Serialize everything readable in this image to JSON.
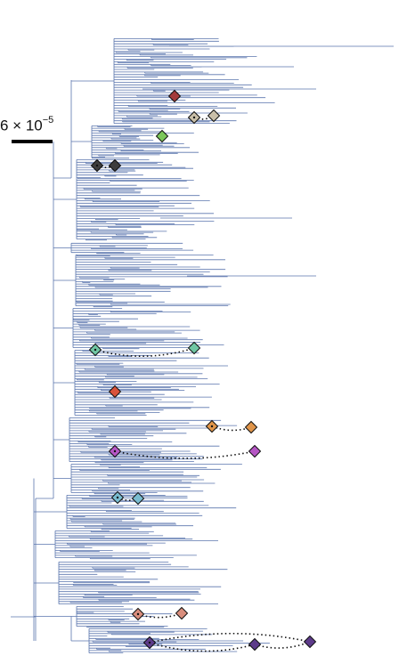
{
  "scale_bar": {
    "base": "6 × 10",
    "exponent": "−5"
  },
  "colors": {
    "branch": "#5b76ae",
    "marker_outline": "#111111",
    "connector": "#111111",
    "markers": {
      "maroon": "#a33a3a",
      "tan": "#c9bfa8",
      "green": "#7cc75a",
      "dark": "#3d3d3d",
      "teal": "#6fc6a3",
      "red": "#d9523a",
      "orange": "#e0954a",
      "magenta": "#b556c4",
      "lightblue": "#79bcd0",
      "salmon": "#d98e7d",
      "purple": "#5d3b8a"
    }
  },
  "tree": {
    "type": "phylogenetic-tree",
    "leaf_count": 300,
    "mutation_groups": [
      {
        "color": "maroon",
        "count": 1
      },
      {
        "color": "tan",
        "count": 2
      },
      {
        "color": "green",
        "count": 1
      },
      {
        "color": "dark",
        "count": 2
      },
      {
        "color": "teal",
        "count": 2
      },
      {
        "color": "red",
        "count": 1
      },
      {
        "color": "orange",
        "count": 2
      },
      {
        "color": "magenta",
        "count": 2
      },
      {
        "color": "lightblue",
        "count": 2
      },
      {
        "color": "salmon",
        "count": 2
      },
      {
        "color": "purple",
        "count": 3
      }
    ]
  }
}
